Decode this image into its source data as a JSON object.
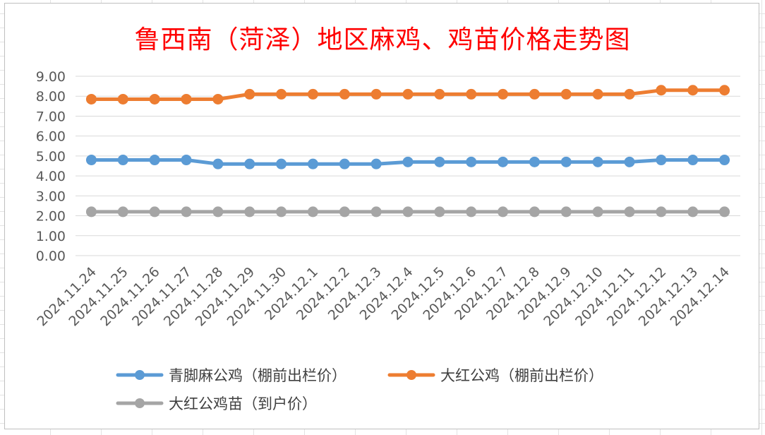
{
  "chart_data": {
    "type": "line",
    "title": "鲁西南（菏泽）地区麻鸡、鸡苗价格走势图",
    "xlabel": "",
    "ylabel": "",
    "ylim": [
      0,
      9
    ],
    "yticks": [
      "0.00",
      "1.00",
      "2.00",
      "3.00",
      "4.00",
      "5.00",
      "6.00",
      "7.00",
      "8.00",
      "9.00"
    ],
    "categories": [
      "2024.11.24",
      "2024.11.25",
      "2024.11.26",
      "2024.11.27",
      "2024.11.28",
      "2024.11.29",
      "2024.11.30",
      "2024.12.1",
      "2024.12.2",
      "2024.12.3",
      "2024.12.4",
      "2024.12.5",
      "2024.12.6",
      "2024.12.7",
      "2024.12.8",
      "2024.12.9",
      "2024.12.10",
      "2024.12.11",
      "2024.12.12",
      "2024.12.13",
      "2024.12.14"
    ],
    "grid": true,
    "legend_position": "bottom",
    "series": [
      {
        "name": "青脚麻公鸡（棚前出栏价）",
        "color": "#5b9bd5",
        "values": [
          4.8,
          4.8,
          4.8,
          4.8,
          4.6,
          4.6,
          4.6,
          4.6,
          4.6,
          4.6,
          4.7,
          4.7,
          4.7,
          4.7,
          4.7,
          4.7,
          4.7,
          4.7,
          4.8,
          4.8,
          4.8
        ]
      },
      {
        "name": "大红公鸡（棚前出栏价）",
        "color": "#ed7d31",
        "values": [
          7.85,
          7.85,
          7.85,
          7.85,
          7.85,
          8.1,
          8.1,
          8.1,
          8.1,
          8.1,
          8.1,
          8.1,
          8.1,
          8.1,
          8.1,
          8.1,
          8.1,
          8.1,
          8.3,
          8.3,
          8.3
        ]
      },
      {
        "name": "大红公鸡苗（到户价）",
        "color": "#a5a5a5",
        "values": [
          2.2,
          2.2,
          2.2,
          2.2,
          2.2,
          2.2,
          2.2,
          2.2,
          2.2,
          2.2,
          2.2,
          2.2,
          2.2,
          2.2,
          2.2,
          2.2,
          2.2,
          2.2,
          2.2,
          2.2,
          2.2
        ]
      }
    ]
  }
}
